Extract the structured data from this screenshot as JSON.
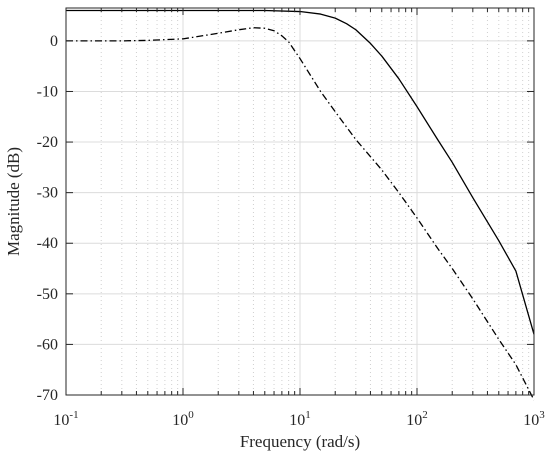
{
  "chart_data": {
    "type": "line",
    "xscale": "log",
    "xlabel": "Frequency  (rad/s)",
    "ylabel": "Magnitude (dB)",
    "xlim": [
      0.1,
      1000
    ],
    "ylim": [
      -70,
      6.5
    ],
    "grid": true,
    "x_ticks": [
      {
        "value": 0.1,
        "base": "10",
        "exp": "-1"
      },
      {
        "value": 1,
        "base": "10",
        "exp": "0"
      },
      {
        "value": 10,
        "base": "10",
        "exp": "1"
      },
      {
        "value": 100,
        "base": "10",
        "exp": "2"
      },
      {
        "value": 1000,
        "base": "10",
        "exp": "3"
      }
    ],
    "y_ticks": [
      0,
      -10,
      -20,
      -30,
      -40,
      -50,
      -60,
      -70
    ],
    "y_tick_labels": [
      "0",
      "-10",
      "-20",
      "-30",
      "-40",
      "-50",
      "-60",
      "-70"
    ],
    "series": [
      {
        "style": "solid",
        "color": "#000000",
        "x": [
          0.1,
          1,
          5,
          10,
          15,
          20,
          25,
          30,
          40,
          50,
          70,
          100,
          150,
          200,
          300,
          500,
          700,
          1000
        ],
        "y": [
          6.0,
          6.0,
          6.0,
          5.8,
          5.3,
          4.5,
          3.4,
          2.2,
          -0.5,
          -3.0,
          -7.5,
          -13.0,
          -19.5,
          -24.0,
          -31.0,
          -39.5,
          -45.5,
          -58.0
        ]
      },
      {
        "style": "dashdot",
        "color": "#000000",
        "x": [
          0.1,
          0.3,
          0.5,
          1,
          2,
          3,
          4,
          5,
          6,
          7,
          8,
          10,
          15,
          20,
          30,
          50,
          70,
          100,
          150,
          200,
          300,
          500,
          700,
          1000
        ],
        "y": [
          0.0,
          0.0,
          0.1,
          0.4,
          1.5,
          2.2,
          2.6,
          2.5,
          2.0,
          1.0,
          -0.2,
          -3.5,
          -10.0,
          -14.0,
          -19.5,
          -25.5,
          -30.0,
          -35.0,
          -41.0,
          -45.0,
          -51.0,
          -59.0,
          -64.0,
          -71.0
        ]
      }
    ]
  }
}
